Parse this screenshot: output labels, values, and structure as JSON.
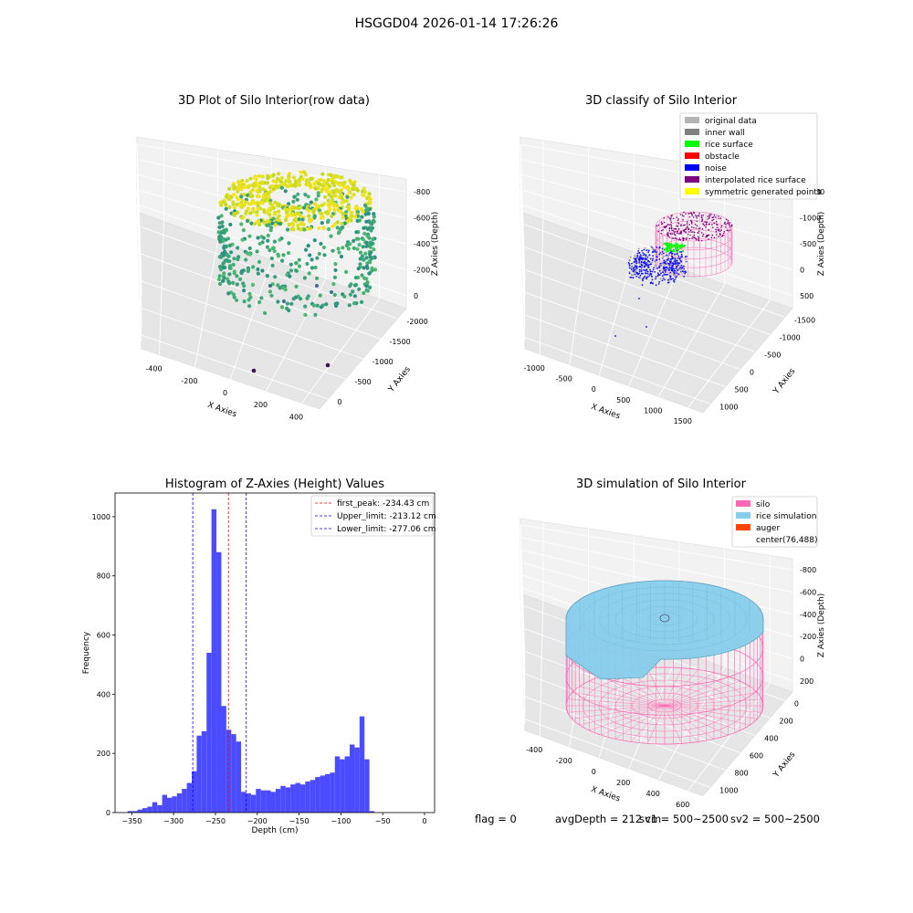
{
  "figure_title": "HSGGD04 2026-01-14 17:26:26",
  "status": {
    "flag": "flag = 0",
    "avg_depth": "avgDepth = 212 cm",
    "sv1": "sv1 = 500~2500",
    "sv2": "sv2 = 500~2500"
  },
  "colors": {
    "hist_bar": "#4b4bff",
    "peak_line": "#ff0000",
    "limit_line": "#0000ff",
    "silo": "#ff69b4",
    "rice": "#87ceeb",
    "auger": "#ff4500",
    "noise": "#0000ff",
    "rice_surface": "#00ff00"
  },
  "chart_data": [
    {
      "type": "scatter",
      "title": "3D Plot of Silo Interior(row data)",
      "xlabel": "X Axies",
      "ylabel": "Y Axies",
      "zlabel": "Z Axies (Depth)",
      "x_ticks": [
        "-400",
        "-200",
        "0",
        "200",
        "400"
      ],
      "y_ticks": [
        "0",
        "-500",
        "-1000",
        "-1500",
        "-2000"
      ],
      "z_ticks": [
        "0",
        "-200",
        "-400",
        "-600",
        "-800"
      ]
    },
    {
      "type": "scatter",
      "title": "3D classify of Silo Interior",
      "xlabel": "X Axies",
      "ylabel": "Y Axies",
      "zlabel": "Z Axies (Depth)",
      "x_ticks": [
        "-1000",
        "-500",
        "0",
        "500",
        "1000",
        "1500"
      ],
      "y_ticks": [
        "1000",
        "500",
        "0",
        "-500",
        "-1000",
        "-1500"
      ],
      "z_ticks": [
        "500",
        "0",
        "-500",
        "-1000",
        "-1500"
      ],
      "z_extra_tick": "00",
      "legend": [
        {
          "name": "original data",
          "color": "#b4b4b4"
        },
        {
          "name": "inner wall",
          "color": "#808080"
        },
        {
          "name": "rice surface",
          "color": "#00ff00"
        },
        {
          "name": "obstacle",
          "color": "#ff0000"
        },
        {
          "name": "noise",
          "color": "#0000ff"
        },
        {
          "name": "interpolated rice surface",
          "color": "#800080"
        },
        {
          "name": "symmetric generated points",
          "color": "#ffff00"
        }
      ]
    },
    {
      "type": "bar",
      "title": "Histogram of Z-Axies (Height) Values",
      "xlabel": "Depth (cm)",
      "ylabel": "Frequency",
      "xlim": [
        -370,
        12
      ],
      "ylim": [
        0,
        1080
      ],
      "x_ticks": [
        -350,
        -300,
        -250,
        -200,
        -150,
        -100,
        -50,
        0
      ],
      "y_ticks": [
        0,
        200,
        400,
        600,
        800,
        1000
      ],
      "bin_width": 5.9,
      "bin_start": -355,
      "values": [
        5,
        5,
        10,
        15,
        20,
        35,
        25,
        60,
        50,
        55,
        65,
        80,
        100,
        140,
        260,
        275,
        540,
        1025,
        880,
        360,
        280,
        265,
        240,
        70,
        65,
        60,
        80,
        75,
        75,
        70,
        80,
        90,
        85,
        95,
        100,
        95,
        105,
        110,
        120,
        125,
        130,
        135,
        190,
        180,
        190,
        230,
        220,
        325,
        180,
        5
      ],
      "lines": [
        {
          "name": "first_peak: -234.43 cm",
          "x": -234.43,
          "color": "#ff0000"
        },
        {
          "name": "Upper_limit: -213.12 cm",
          "x": -213.12,
          "color": "#0000ff"
        },
        {
          "name": "Lower_limit: -277.06 cm",
          "x": -277.06,
          "color": "#0000ff"
        }
      ]
    },
    {
      "type": "scatter",
      "title": "3D simulation of Silo Interior",
      "xlabel": "X Axies",
      "ylabel": "Y Axies",
      "zlabel": "Z Axies (Depth)",
      "x_ticks": [
        "-400",
        "-200",
        "0",
        "200",
        "400",
        "600"
      ],
      "y_ticks": [
        "1000",
        "800",
        "600",
        "400",
        "200",
        "0"
      ],
      "z_ticks": [
        "200",
        "0",
        "-200",
        "-400",
        "-600",
        "-800"
      ],
      "legend": [
        {
          "name": "silo",
          "color": "#ff69b4"
        },
        {
          "name": "rice simulation",
          "color": "#87ceeb"
        },
        {
          "name": "auger",
          "color": "#ff4500"
        },
        {
          "name": "center(76,488)",
          "color": ""
        }
      ]
    }
  ]
}
